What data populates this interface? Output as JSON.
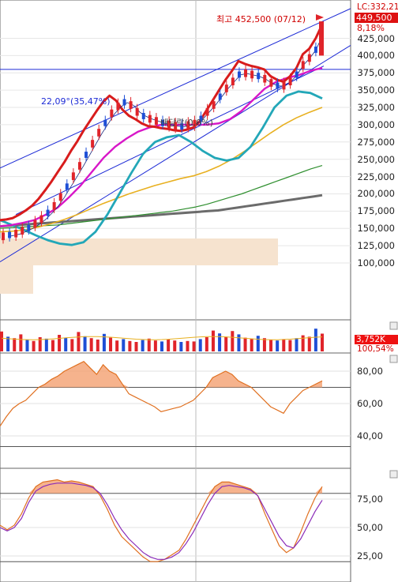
{
  "price_axis": {
    "lc_label": "LC:332,21",
    "last_price_label": "449,500",
    "change_pct_label": "8,18%",
    "ticks": [
      "425,000",
      "400,000",
      "375,000",
      "350,000",
      "325,000",
      "300,000",
      "275,000",
      "250,000",
      "225,000",
      "200,000",
      "175,000",
      "150,000",
      "125,000",
      "100,000"
    ]
  },
  "annotations": {
    "high_label": "최고 452,500 (07/12)",
    "angle_label": "22,09°(35,47%)",
    "dividend_label": "배당락(0,0%)"
  },
  "volume_axis": {
    "volume_label": "3,752K",
    "ratio_label": "100,54%"
  },
  "osc1_axis": {
    "ticks": [
      "80,00",
      "60,00",
      "40,00"
    ]
  },
  "osc2_axis": {
    "ticks": [
      "75,00",
      "50,00",
      "25,00"
    ]
  },
  "colors": {
    "bollinger": "#d81c1c",
    "ma_magenta": "#d817c8",
    "ma_cyan": "#23a7b8",
    "ma_orange": "#e8b020",
    "ma_green": "#2f8f2f",
    "ma_gray": "#6b6b6b",
    "channel": "#1d2bd6",
    "up_candle": "#e0242a",
    "down_candle": "#1e4fd6",
    "volume_box": "#cc0000"
  },
  "chart_data": [
    {
      "type": "line",
      "panel": "price",
      "ylim": [
        80000,
        460000
      ],
      "series": [
        {
          "values": [
            162000,
            163000,
            165000,
            170000,
            176000,
            183000,
            193000,
            205000,
            218000,
            232000,
            246000,
            262000,
            276000,
            292000,
            306000,
            320000,
            333000,
            342000,
            335000,
            322000,
            313000,
            308000,
            302000,
            298000,
            297000,
            295000,
            294000,
            292000,
            291000,
            293000,
            296000,
            305000,
            320000,
            335000,
            350000,
            365000,
            378000,
            392000,
            388000,
            385000,
            383000,
            380000,
            370000,
            365000,
            362000,
            370000,
            382000,
            402000,
            410000,
            425000,
            445000
          ]
        },
        {
          "values": [
            138000,
            140000,
            142000,
            146000,
            150000,
            156000,
            163000,
            172000,
            182000,
            195000,
            210000,
            225000,
            240000,
            256000,
            272000,
            288000,
            302000,
            316000,
            326000,
            332000,
            328000,
            318000,
            312000,
            308000,
            305000,
            302000,
            300000,
            298000,
            297000,
            299000,
            301000,
            308000,
            318000,
            328000,
            340000,
            352000,
            362000,
            372000,
            374000,
            372000,
            370000,
            366000,
            360000,
            356000,
            356000,
            362000,
            372000,
            386000,
            396000,
            408000,
            428000
          ]
        }
      ]
    },
    {
      "type": "bar",
      "panel": "volume",
      "series": [
        {
          "values": [
            4200,
            3100,
            2800,
            3600,
            2500,
            2200,
            3000,
            2700,
            2400,
            3500,
            2900,
            2600,
            4100,
            3200,
            2800,
            2500,
            3700,
            2900,
            2300,
            2600,
            2200,
            2000,
            2400,
            2700,
            2300,
            2100,
            2500,
            2300,
            2000,
            2200,
            2100,
            2600,
            3000,
            4400,
            3800,
            3100,
            4300,
            3600,
            2900,
            2700,
            3300,
            2800,
            2500,
            2300,
            2600,
            2400,
            2800,
            3400,
            3100,
            4800,
            3752
          ]
        }
      ]
    },
    {
      "type": "line",
      "panel": "oscillator1",
      "ylim": [
        20,
        90
      ],
      "series": [
        {
          "values": [
            46,
            52,
            57,
            60,
            62,
            66,
            70,
            72,
            75,
            77,
            80,
            82,
            84,
            86,
            82,
            78,
            84,
            80,
            78,
            72,
            66,
            64,
            62,
            60,
            58,
            55,
            56,
            57,
            58,
            60,
            62,
            66,
            70,
            76,
            78,
            80,
            78,
            74,
            72,
            70,
            66,
            62,
            58,
            56,
            54,
            60,
            64,
            68,
            70,
            72,
            74
          ]
        }
      ]
    },
    {
      "type": "line",
      "panel": "oscillator2",
      "ylim": [
        0,
        100
      ],
      "series": [
        {
          "values": [
            52,
            48,
            52,
            62,
            76,
            86,
            90,
            91,
            92,
            90,
            91,
            90,
            88,
            86,
            78,
            66,
            52,
            42,
            36,
            30,
            24,
            20,
            20,
            22,
            26,
            30,
            40,
            52,
            64,
            76,
            86,
            90,
            90,
            88,
            86,
            84,
            78,
            62,
            48,
            34,
            28,
            32,
            46,
            62,
            76,
            86
          ]
        },
        {
          "values": [
            50,
            47,
            50,
            58,
            72,
            82,
            86,
            88,
            89,
            89,
            89,
            88,
            87,
            85,
            80,
            70,
            58,
            48,
            40,
            34,
            28,
            24,
            22,
            22,
            24,
            28,
            36,
            46,
            58,
            70,
            80,
            86,
            87,
            86,
            85,
            83,
            78,
            66,
            54,
            42,
            34,
            32,
            40,
            52,
            64,
            74
          ]
        }
      ]
    }
  ]
}
